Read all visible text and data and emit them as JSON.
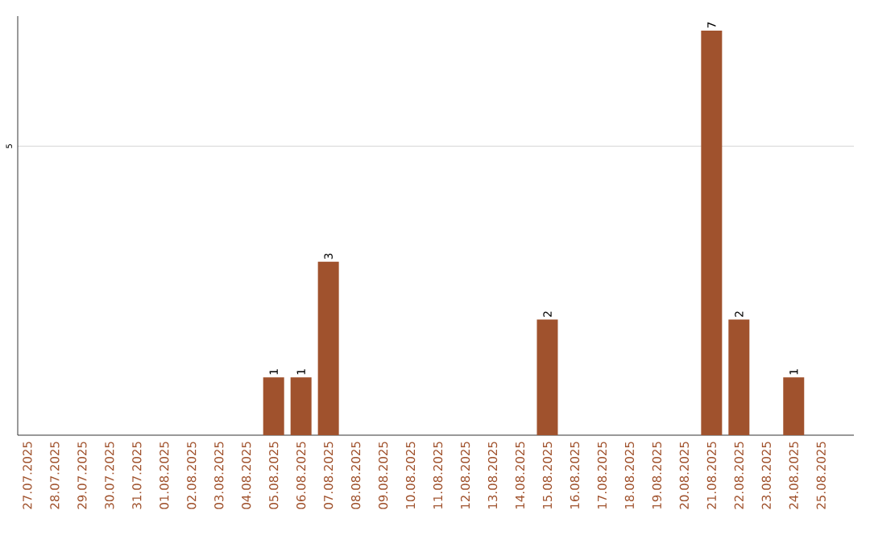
{
  "chart_data": {
    "type": "bar",
    "categories": [
      "27.07.2025",
      "28.07.2025",
      "29.07.2025",
      "30.07.2025",
      "31.07.2025",
      "01.08.2025",
      "02.08.2025",
      "03.08.2025",
      "04.08.2025",
      "05.08.2025",
      "06.08.2025",
      "07.08.2025",
      "08.08.2025",
      "09.08.2025",
      "10.08.2025",
      "11.08.2025",
      "12.08.2025",
      "13.08.2025",
      "14.08.2025",
      "15.08.2025",
      "16.08.2025",
      "17.08.2025",
      "18.08.2025",
      "19.08.2025",
      "20.08.2025",
      "21.08.2025",
      "22.08.2025",
      "23.08.2025",
      "24.08.2025",
      "25.08.2025"
    ],
    "values": [
      0,
      0,
      0,
      0,
      0,
      0,
      0,
      0,
      0,
      1,
      1,
      3,
      0,
      0,
      0,
      0,
      0,
      0,
      0,
      2,
      0,
      0,
      0,
      0,
      0,
      7,
      2,
      0,
      1,
      0
    ],
    "value_labels": [
      null,
      null,
      null,
      null,
      null,
      null,
      null,
      null,
      null,
      "1",
      "1",
      "3",
      null,
      null,
      null,
      null,
      null,
      null,
      null,
      "2",
      null,
      null,
      null,
      null,
      null,
      "7",
      "2",
      null,
      "1",
      null
    ],
    "color": "#a0522d",
    "ylim": [
      0,
      7.25
    ],
    "yticks": [
      5
    ],
    "grid": "y"
  }
}
